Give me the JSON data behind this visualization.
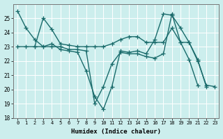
{
  "xlabel": "Humidex (Indice chaleur)",
  "bg_color": "#cceeed",
  "line_color": "#1a6b6b",
  "grid_color": "#ffffff",
  "ylim": [
    18,
    26
  ],
  "xlim": [
    -0.5,
    23.5
  ],
  "yticks": [
    18,
    19,
    20,
    21,
    22,
    23,
    24,
    25
  ],
  "xticks": [
    0,
    1,
    2,
    3,
    4,
    5,
    6,
    7,
    8,
    9,
    10,
    11,
    12,
    13,
    14,
    15,
    16,
    17,
    18,
    19,
    20,
    21,
    22,
    23
  ],
  "line1": {
    "x": [
      0,
      1,
      2,
      3,
      4,
      5,
      6,
      7,
      8,
      9,
      10,
      11,
      12,
      13,
      14,
      15,
      16,
      17,
      18,
      19,
      20,
      21,
      22
    ],
    "y": [
      25.5,
      24.3,
      23.5,
      23.0,
      23.2,
      22.8,
      22.7,
      22.6,
      21.3,
      19.5,
      18.6,
      20.2,
      22.7,
      22.6,
      22.7,
      22.5,
      23.5,
      25.3,
      25.2,
      24.3,
      23.3,
      22.1,
      20.2
    ]
  },
  "line2": {
    "x": [
      2,
      3,
      4,
      5,
      6,
      7,
      8,
      9,
      10,
      11,
      12,
      13,
      14,
      15,
      16,
      17,
      18,
      19,
      20,
      21,
      22,
      23
    ],
    "y": [
      23.0,
      25.0,
      24.2,
      23.2,
      23.1,
      23.0,
      23.0,
      23.0,
      23.0,
      23.2,
      23.5,
      23.7,
      23.7,
      23.3,
      23.3,
      23.3,
      24.3,
      23.3,
      23.3,
      22.0,
      20.3,
      20.2
    ]
  },
  "line3": {
    "x": [
      0,
      1,
      2,
      3,
      4,
      5,
      6,
      7,
      8,
      9,
      10,
      11,
      12,
      13,
      14,
      15,
      16,
      17,
      18,
      19,
      20,
      21
    ],
    "y": [
      23.0,
      23.0,
      23.0,
      23.0,
      23.0,
      23.0,
      22.8,
      22.8,
      22.7,
      19.0,
      20.2,
      21.8,
      22.6,
      22.5,
      22.5,
      22.3,
      22.2,
      22.5,
      25.3,
      23.3,
      22.1,
      20.3
    ]
  },
  "marker": "+",
  "markersize": 4,
  "linewidth": 1.0
}
